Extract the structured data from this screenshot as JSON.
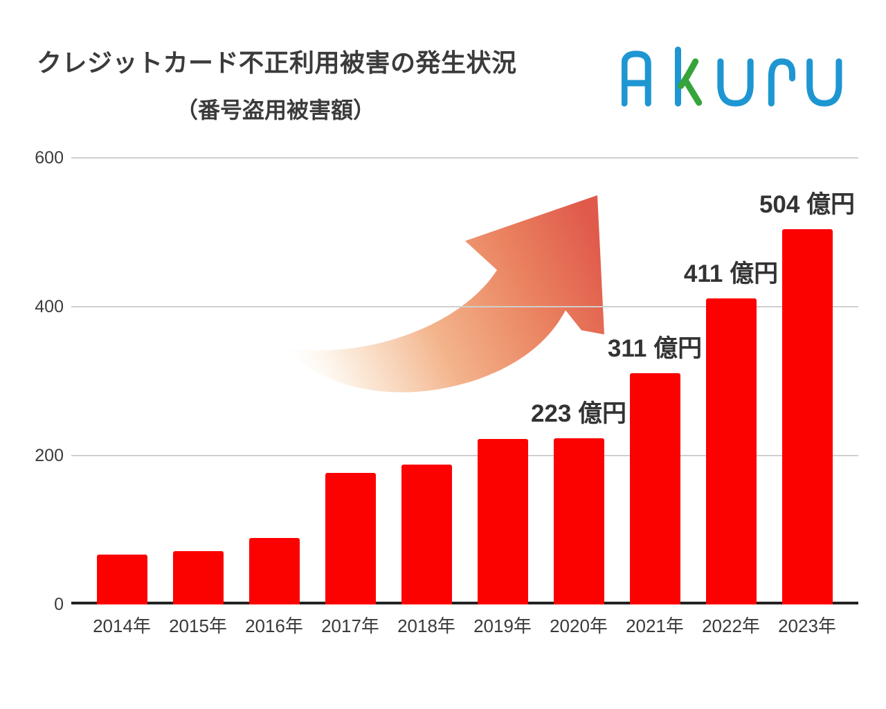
{
  "header": {
    "title_line1": "クレジットカード不正利用被害の発生状況",
    "title_line2": "（番号盗用被害額）",
    "logo_text": "Akuru",
    "logo_blue": "#1e96d2",
    "logo_green": "#35a43a"
  },
  "chart_data": {
    "type": "bar",
    "title": "クレジットカード不正利用被害の発生状況（番号盗用被害額）",
    "categories": [
      "2014年",
      "2015年",
      "2016年",
      "2017年",
      "2018年",
      "2019年",
      "2020年",
      "2021年",
      "2022年",
      "2023年"
    ],
    "values": [
      67,
      72,
      89,
      177,
      188,
      222,
      223,
      311,
      411,
      504
    ],
    "bar_labels": [
      "",
      "",
      "",
      "",
      "",
      "",
      "223 億円",
      "311 億円",
      "411 億円",
      "504 億円"
    ],
    "unit": "億円",
    "xlabel": "",
    "ylabel": "",
    "ylim": [
      0,
      600
    ],
    "yticks": [
      600,
      400,
      200,
      0
    ],
    "grid": true,
    "legend": false,
    "bar_color": "#fb0100",
    "grid_color": "#cfcfcf",
    "axis_color": "#222222",
    "text_color": "#333333",
    "annotation": "upward-trend-arrow"
  }
}
